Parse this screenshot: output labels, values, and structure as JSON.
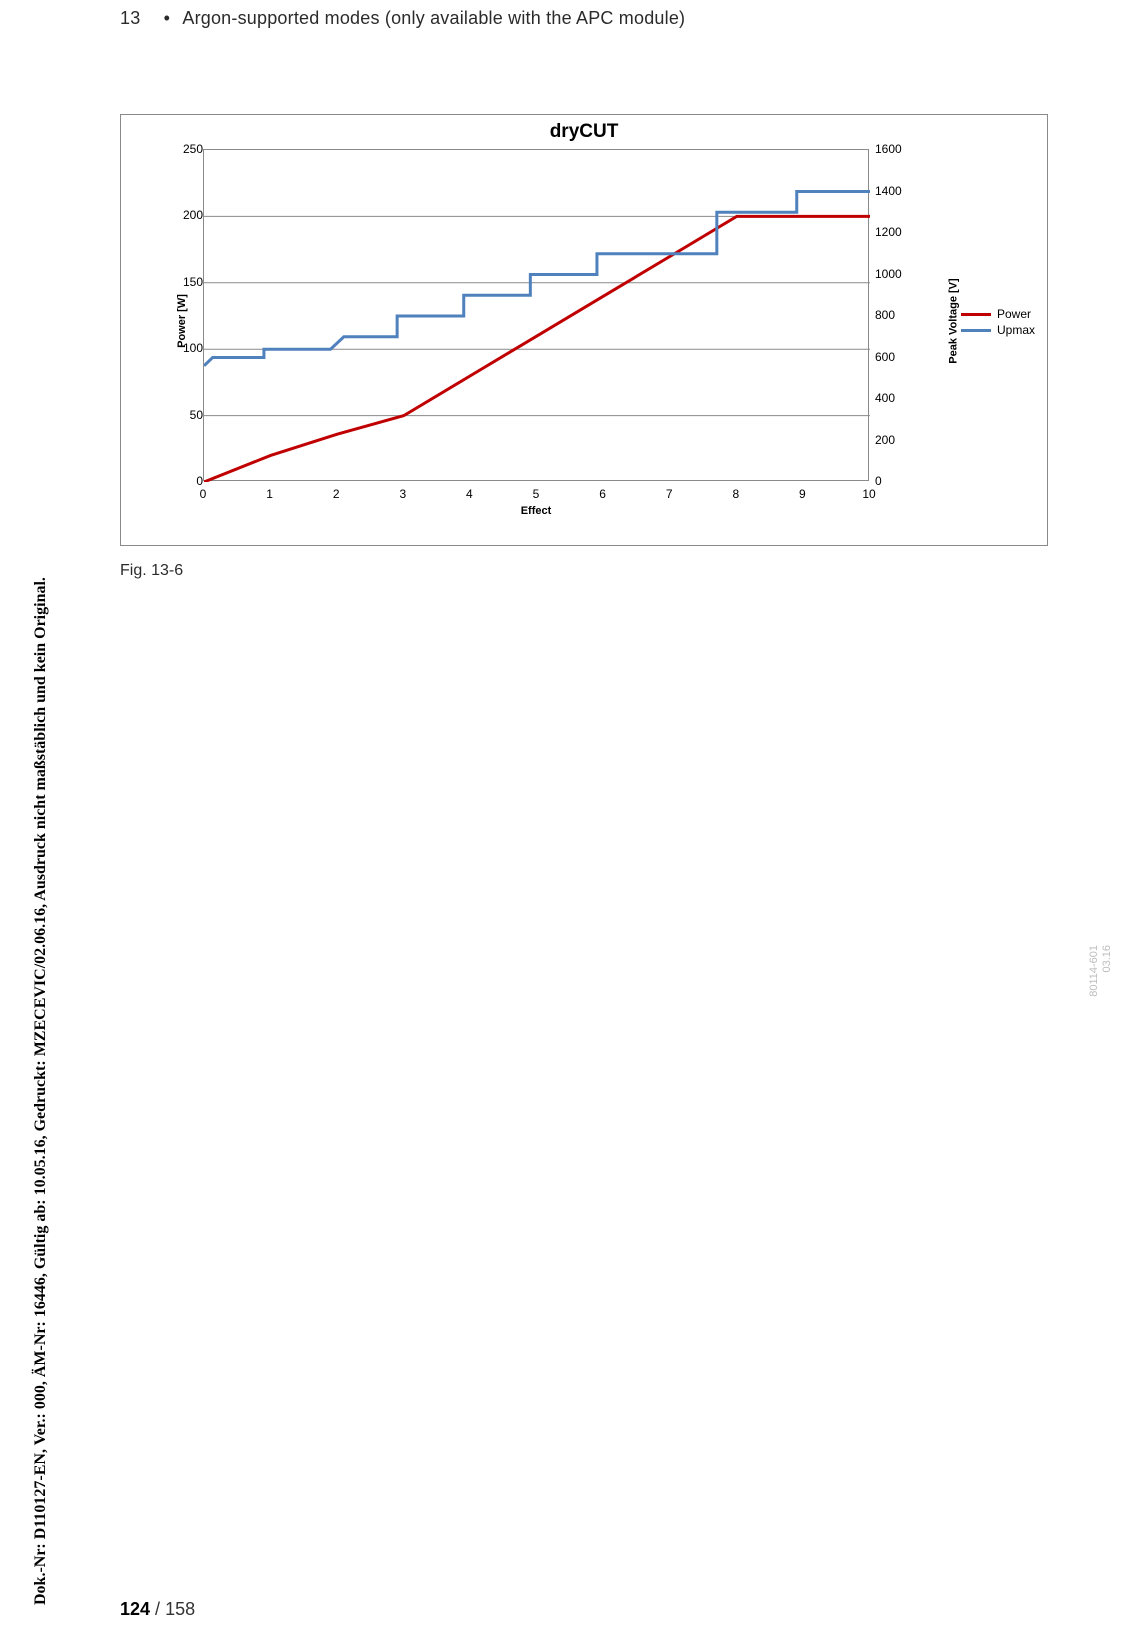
{
  "header": {
    "number": "13",
    "bullet": "•",
    "text": "Argon-supported modes (only available with the APC module)"
  },
  "doc_string": "Dok.-Nr: D110127-EN, Ver.: 000, ÄM-Nr: 16446, Gültig ab: 10.05.16, Gedruckt: MZECEVIC/02.06.16, Ausdruck nicht maßstäblich und kein Original.",
  "side_code": "80114-601\n03.16",
  "page": {
    "current": "124",
    "sep": " / ",
    "total": "158"
  },
  "figure_caption": "Fig. 13-6",
  "chart": {
    "type": "line-dual-axis",
    "title": "dryCUT",
    "x_axis": {
      "label": "Effect",
      "min": 0,
      "max": 10,
      "ticks": [
        0,
        1,
        2,
        3,
        4,
        5,
        6,
        7,
        8,
        9,
        10
      ]
    },
    "y1_axis": {
      "label": "Power [W]",
      "min": 0,
      "max": 250,
      "ticks": [
        0,
        50,
        100,
        150,
        200,
        250
      ]
    },
    "y2_axis": {
      "label": "Peak Voltage [V]",
      "min": 0,
      "max": 1600,
      "ticks": [
        0,
        200,
        400,
        600,
        800,
        1000,
        1200,
        1400,
        1600
      ]
    },
    "background_color": "#ffffff",
    "grid_color": "#8a8a8a",
    "border_color": "#8a8a8a",
    "line_width": 3,
    "legend": {
      "items": [
        {
          "label": "Power",
          "color": "#c00000"
        },
        {
          "label": "Upmax",
          "color": "#4f81bd"
        }
      ]
    },
    "series": [
      {
        "name": "Power",
        "color": "#c00000",
        "axis": "y1",
        "points": [
          [
            0,
            0
          ],
          [
            1,
            20
          ],
          [
            2,
            36
          ],
          [
            3,
            50
          ],
          [
            4,
            80
          ],
          [
            5,
            110
          ],
          [
            6,
            140
          ],
          [
            7,
            170
          ],
          [
            8,
            200
          ],
          [
            9,
            200
          ],
          [
            10,
            200
          ]
        ]
      },
      {
        "name": "Upmax",
        "color": "#4f81bd",
        "axis": "y2",
        "points": [
          [
            0,
            560
          ],
          [
            0.13,
            600
          ],
          [
            0.9,
            600
          ],
          [
            0.9,
            640
          ],
          [
            1.9,
            640
          ],
          [
            1.9,
            640
          ],
          [
            2.1,
            700
          ],
          [
            2.9,
            700
          ],
          [
            2.9,
            800
          ],
          [
            3.9,
            800
          ],
          [
            3.9,
            900
          ],
          [
            4.9,
            900
          ],
          [
            4.9,
            1000
          ],
          [
            5.9,
            1000
          ],
          [
            5.9,
            1100
          ],
          [
            7.7,
            1100
          ],
          [
            7.7,
            1300
          ],
          [
            8.9,
            1300
          ],
          [
            8.9,
            1400
          ],
          [
            10,
            1400
          ]
        ]
      }
    ]
  }
}
